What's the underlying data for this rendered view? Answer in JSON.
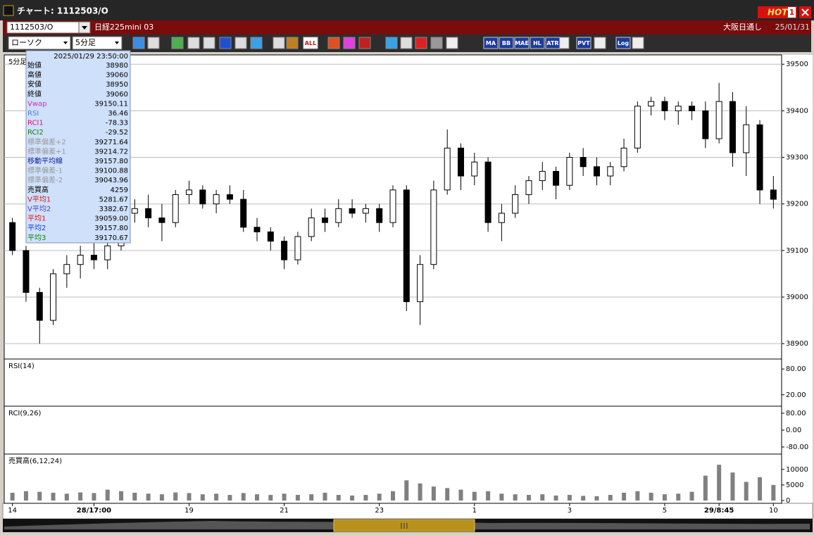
{
  "window": {
    "title": "チャート: 1112503/O",
    "hot": "HOT",
    "hot_count": "1"
  },
  "toolbar": {
    "symbol": "1112503/O",
    "name": "日経225mini 03",
    "market": "大阪日通し",
    "date": "25/01/31",
    "chart_type": "ローソク",
    "interval": "5分足",
    "buttons": [
      "ALL",
      "MA",
      "BB",
      "MAE",
      "HL",
      "ATR",
      "PVT",
      "Log"
    ]
  },
  "info_panel": {
    "datetime": "2025/01/29 23:50:00",
    "rows": [
      {
        "label": "始値",
        "value": "38980",
        "color": "#000000"
      },
      {
        "label": "高値",
        "value": "39060",
        "color": "#000000"
      },
      {
        "label": "安値",
        "value": "38950",
        "color": "#000000"
      },
      {
        "label": "終値",
        "value": "39060",
        "color": "#000000"
      },
      {
        "label": "Vwap",
        "value": "39150.11",
        "color": "#e020c0"
      },
      {
        "label": "RSI",
        "value": "36.46",
        "color": "#4a7fd8"
      },
      {
        "label": "RCI1",
        "value": "-78.33",
        "color": "#e0106a"
      },
      {
        "label": "RCI2",
        "value": "-29.52",
        "color": "#108010"
      },
      {
        "label": "標準偏差+2",
        "value": "39271.64",
        "color": "#9a9a9a"
      },
      {
        "label": "標準偏差+1",
        "value": "39214.72",
        "color": "#9a9a9a"
      },
      {
        "label": "移動平均線",
        "value": "39157.80",
        "color": "#1020a0"
      },
      {
        "label": "標準偏差-1",
        "value": "39100.88",
        "color": "#9a9a9a"
      },
      {
        "label": "標準偏差-2",
        "value": "39043.96",
        "color": "#9a9a9a"
      },
      {
        "label": "売買高",
        "value": "4259",
        "color": "#000000"
      },
      {
        "label": "V平均1",
        "value": "5281.67",
        "color": "#e01010"
      },
      {
        "label": "V平均2",
        "value": "3382.67",
        "color": "#5a40c0"
      },
      {
        "label": "平均1",
        "value": "39059.00",
        "color": "#e01010"
      },
      {
        "label": "平均2",
        "value": "39157.80",
        "color": "#1040d0"
      },
      {
        "label": "平均3",
        "value": "39170.67",
        "color": "#108010"
      }
    ]
  },
  "chart_data": [
    {
      "type": "candlestick",
      "title": "5分足",
      "up_color": "#ffffff",
      "down_color": "#000000",
      "grid": true,
      "open": [
        39160,
        39100,
        39010,
        38950,
        39050,
        39070,
        39090,
        39080,
        39110,
        39180,
        39190,
        39170,
        39160,
        39220,
        39230,
        39200,
        39220,
        39210,
        39150,
        39140,
        39120,
        39080,
        39130,
        39170,
        39160,
        39190,
        39180,
        39190,
        39160,
        39230,
        38990,
        39070,
        39230,
        39320,
        39260,
        39290,
        39160,
        39180,
        39220,
        39250,
        39270,
        39240,
        39300,
        39280,
        39260,
        39280,
        39320,
        39410,
        39420,
        39400,
        39410,
        39400,
        39340,
        39420,
        39310,
        39370,
        39230
      ],
      "high": [
        39170,
        39110,
        39020,
        39060,
        39090,
        39110,
        39120,
        39130,
        39200,
        39210,
        39220,
        39200,
        39230,
        39250,
        39240,
        39230,
        39240,
        39230,
        39170,
        39150,
        39130,
        39140,
        39190,
        39190,
        39210,
        39210,
        39200,
        39200,
        39240,
        39240,
        39090,
        39250,
        39360,
        39330,
        39310,
        39300,
        39200,
        39240,
        39260,
        39290,
        39280,
        39310,
        39320,
        39300,
        39290,
        39340,
        39420,
        39430,
        39430,
        39420,
        39420,
        39420,
        39460,
        39440,
        39410,
        39380,
        39260
      ],
      "low": [
        39090,
        38990,
        38900,
        38940,
        39020,
        39040,
        39060,
        39060,
        39100,
        39160,
        39150,
        39120,
        39150,
        39200,
        39190,
        39180,
        39200,
        39140,
        39120,
        39100,
        39060,
        39070,
        39120,
        39140,
        39150,
        39170,
        39160,
        39140,
        39150,
        38970,
        38940,
        39060,
        39220,
        39230,
        39240,
        39140,
        39120,
        39170,
        39200,
        39230,
        39210,
        39230,
        39260,
        39240,
        39240,
        39270,
        39310,
        39390,
        39380,
        39370,
        39380,
        39320,
        39330,
        39280,
        39260,
        39200,
        39190
      ],
      "close": [
        39100,
        39010,
        38950,
        39050,
        39070,
        39090,
        39080,
        39110,
        39180,
        39190,
        39170,
        39160,
        39220,
        39230,
        39200,
        39220,
        39210,
        39150,
        39140,
        39120,
        39080,
        39130,
        39170,
        39160,
        39190,
        39180,
        39190,
        39160,
        39230,
        38990,
        39070,
        39230,
        39320,
        39260,
        39290,
        39160,
        39180,
        39220,
        39250,
        39270,
        39240,
        39300,
        39280,
        39260,
        39280,
        39320,
        39410,
        39420,
        39400,
        39410,
        39400,
        39340,
        39420,
        39310,
        39370,
        39230,
        39210
      ],
      "lines": [
        {
          "color": "#b0b0b0",
          "x": [
            0,
            4,
            8,
            12,
            16,
            20,
            24,
            28,
            32,
            36,
            40,
            44,
            48,
            52,
            56
          ],
          "values": [
            39250,
            39150,
            39250,
            39250,
            39270,
            39260,
            39250,
            39250,
            39390,
            39430,
            39370,
            39330,
            39400,
            39500,
            39480
          ]
        },
        {
          "color": "#b0b0b0",
          "x": [
            0,
            4,
            8,
            12,
            16,
            20,
            24,
            28,
            32,
            36,
            40,
            44,
            48,
            52,
            56
          ],
          "values": [
            39000,
            38900,
            38930,
            39080,
            39140,
            39050,
            39100,
            39090,
            38940,
            38960,
            39050,
            39130,
            39190,
            39250,
            39160
          ]
        },
        {
          "color": "#a0a0a0",
          "x": [
            0,
            57
          ],
          "values": [
            38920,
            39100
          ]
        },
        {
          "color": "#a0a0a0",
          "x": [
            20,
            57
          ],
          "values": [
            38880,
            38970
          ]
        },
        {
          "color": "#e020c0",
          "x": [
            0,
            4,
            8,
            12,
            16,
            20,
            24,
            28,
            32,
            36,
            40,
            44,
            48,
            52,
            56
          ],
          "values": [
            39085,
            39080,
            39120,
            39150,
            39150,
            39145,
            39150,
            39160,
            39150,
            39160,
            39170,
            39180,
            39190,
            39200,
            39240
          ]
        },
        {
          "color": "#108010",
          "x": [
            0,
            4,
            8,
            12,
            16,
            20,
            24,
            28,
            32,
            36,
            40,
            44,
            48,
            52,
            56
          ],
          "values": [
            39160,
            39130,
            39110,
            39130,
            39130,
            39120,
            39120,
            39130,
            39150,
            39160,
            39170,
            39200,
            39240,
            39290,
            39300
          ]
        },
        {
          "color": "#2060e0",
          "x": [
            0,
            4,
            8,
            12,
            16,
            20,
            24,
            28,
            32,
            36,
            40,
            44,
            48,
            52,
            56
          ],
          "values": [
            39120,
            39000,
            39060,
            39150,
            39200,
            39150,
            39150,
            39160,
            39140,
            39200,
            39230,
            39250,
            39330,
            39390,
            39280
          ]
        },
        {
          "color": "#e01010",
          "x": [
            0,
            4,
            8,
            12,
            16,
            20,
            24,
            28,
            32,
            36,
            40,
            44,
            48,
            52,
            56
          ],
          "values": [
            39150,
            39030,
            39120,
            39190,
            39215,
            39110,
            39170,
            39180,
            39230,
            39200,
            39250,
            39270,
            39410,
            39380,
            39240
          ]
        }
      ],
      "ylim": [
        38870,
        39517
      ],
      "yticks": [
        38900,
        39000,
        39100,
        39200,
        39300,
        39400,
        39500
      ]
    },
    {
      "type": "line",
      "title": "RSI(14)",
      "x": [
        0,
        2,
        4,
        6,
        8,
        10,
        12,
        14,
        16,
        18,
        20,
        22,
        24,
        26,
        28,
        30,
        32,
        34,
        36,
        38,
        40,
        42,
        44,
        46,
        48,
        50,
        52,
        54,
        56
      ],
      "series": [
        {
          "color": "#4a7fd8",
          "values": [
            60,
            35,
            42,
            58,
            72,
            68,
            64,
            60,
            66,
            62,
            54,
            48,
            50,
            54,
            56,
            52,
            50,
            46,
            58,
            64,
            42,
            62,
            58,
            60,
            62,
            74,
            70,
            56,
            44
          ]
        }
      ],
      "ylim": [
        0,
        100
      ],
      "yticks": [
        {
          "value": 80,
          "label": "80.00"
        },
        {
          "value": 20,
          "label": "20.00"
        }
      ]
    },
    {
      "type": "line",
      "title": "RCI(9,26)",
      "x": [
        0,
        2,
        4,
        6,
        8,
        10,
        12,
        14,
        16,
        18,
        20,
        22,
        24,
        26,
        28,
        30,
        32,
        34,
        36,
        38,
        40,
        42,
        44,
        46,
        48,
        50,
        52,
        54,
        56
      ],
      "series": [
        {
          "color": "#e0106a",
          "values": [
            80,
            -60,
            -40,
            70,
            85,
            30,
            -50,
            70,
            80,
            -40,
            -60,
            80,
            60,
            -80,
            -60,
            70,
            80,
            -20,
            -70,
            80,
            -30,
            80,
            70,
            -80,
            80,
            60,
            40,
            -40,
            -80
          ]
        },
        {
          "color": "#108010",
          "values": [
            60,
            20,
            -20,
            40,
            80,
            85,
            80,
            60,
            40,
            10,
            -20,
            -60,
            -70,
            -40,
            20,
            60,
            70,
            40,
            -20,
            -60,
            -40,
            20,
            60,
            70,
            80,
            80,
            60,
            20,
            -60
          ]
        }
      ],
      "ylim": [
        -100,
        100
      ],
      "yticks": [
        {
          "value": 80,
          "label": "80.00"
        },
        {
          "value": 0,
          "label": "0.00"
        },
        {
          "value": -80,
          "label": "-80.00"
        }
      ]
    },
    {
      "type": "bar",
      "title": "売買高(6,12,24)",
      "color": "#808080",
      "categories": [
        "14",
        null,
        null,
        null,
        null,
        null,
        "28/17:00",
        null,
        null,
        null,
        null,
        null,
        null,
        "19",
        null,
        null,
        null,
        null,
        null,
        null,
        "21",
        null,
        null,
        null,
        null,
        null,
        null,
        "23",
        null,
        null,
        null,
        null,
        null,
        null,
        "1",
        null,
        null,
        null,
        null,
        null,
        null,
        "3",
        null,
        null,
        null,
        null,
        null,
        null,
        "5",
        null,
        null,
        null,
        "29/8:45",
        null,
        null,
        null,
        "10"
      ],
      "values": [
        2500,
        3000,
        2800,
        2500,
        2200,
        2600,
        2400,
        3500,
        3000,
        2500,
        2200,
        2000,
        2600,
        2400,
        2000,
        2200,
        1800,
        2400,
        2000,
        1800,
        2200,
        1800,
        2000,
        2500,
        1800,
        1600,
        1800,
        2200,
        3000,
        6500,
        5500,
        4500,
        4000,
        3500,
        2800,
        3000,
        2200,
        2000,
        1800,
        2000,
        1600,
        1800,
        1500,
        1400,
        1800,
        2500,
        3000,
        2500,
        2000,
        2200,
        2800,
        8000,
        11500,
        9000,
        6000,
        7500,
        5000
      ],
      "lines": [
        {
          "color": "#e01010",
          "x": [
            0,
            4,
            8,
            12,
            16,
            20,
            24,
            28,
            32,
            36,
            40,
            44,
            48,
            52,
            56
          ],
          "values": [
            2600,
            2600,
            2800,
            2400,
            2100,
            2000,
            1900,
            2500,
            4500,
            3000,
            1900,
            1700,
            2400,
            6000,
            7000
          ]
        },
        {
          "color": "#2060e0",
          "x": [
            0,
            4,
            8,
            12,
            16,
            20,
            24,
            28,
            32,
            36,
            40,
            44,
            48,
            52,
            56
          ],
          "values": [
            2400,
            2500,
            2600,
            2500,
            2300,
            2100,
            2000,
            2200,
            3200,
            3000,
            2300,
            1900,
            2200,
            4500,
            6500
          ]
        }
      ],
      "ylim": [
        0,
        12000
      ],
      "yticks": [
        10000,
        5000,
        0
      ]
    }
  ]
}
